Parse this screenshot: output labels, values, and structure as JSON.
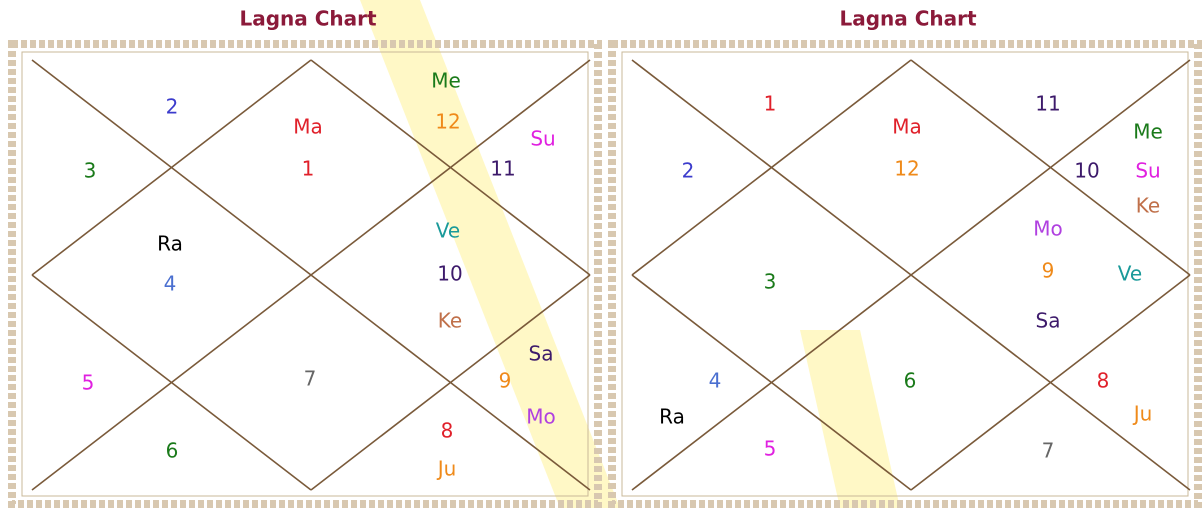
{
  "charts": [
    {
      "title": "Lagna Chart",
      "labels": [
        "Me",
        "12",
        "Ma",
        "1",
        "Su",
        "11",
        "2",
        "3",
        "Ra",
        "4",
        "Ve",
        "10",
        "Ke",
        "7",
        "Sa",
        "9",
        "Mo",
        "5",
        "6",
        "8",
        "Ju"
      ]
    },
    {
      "title": "Lagna Chart",
      "labels": [
        "1",
        "11",
        "Ma",
        "12",
        "Me",
        "10",
        "Su",
        "Ke",
        "2",
        "Mo",
        "9",
        "Ve",
        "Sa",
        "3",
        "6",
        "4",
        "Ra",
        "8",
        "Ju",
        "5",
        "7"
      ]
    }
  ]
}
